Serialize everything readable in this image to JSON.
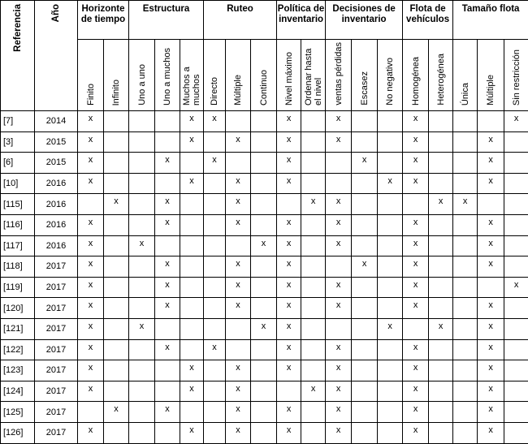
{
  "header": {
    "referencia": "Referencia",
    "year": "Año",
    "groups": [
      {
        "label": "Horizonte de tiempo",
        "columns": [
          "Finito",
          "Infinito"
        ]
      },
      {
        "label": "Estructura",
        "columns": [
          "Uno a uno",
          "Uno a muchos",
          "Muchos a muchos"
        ]
      },
      {
        "label": "Ruteo",
        "columns": [
          "Directo",
          "Múltiple",
          "Continuo"
        ]
      },
      {
        "label": "Política de inventario",
        "columns": [
          "Nivel máximo",
          "Ordenar hasta el nivel"
        ]
      },
      {
        "label": "Decisiones de inventario",
        "columns": [
          "ventas pérdidas",
          "Escasez",
          "No negativo"
        ]
      },
      {
        "label": "Flota de vehículos",
        "columns": [
          "Homogénea",
          "Heterogénea"
        ]
      },
      {
        "label": "Tamaño flota",
        "columns": [
          "Única",
          "Múltiple",
          "Sin restricción"
        ]
      }
    ]
  },
  "rows": [
    {
      "ref": "[7]",
      "year": "2014",
      "cells": [
        "x",
        null,
        null,
        null,
        "x",
        "x",
        null,
        null,
        "x",
        null,
        "x",
        null,
        null,
        "x",
        null,
        null,
        null,
        "x"
      ]
    },
    {
      "ref": "[3]",
      "year": "2015",
      "cells": [
        "x",
        null,
        null,
        null,
        "x",
        null,
        "x",
        null,
        "x",
        null,
        "x",
        null,
        null,
        "x",
        null,
        null,
        "x",
        null
      ]
    },
    {
      "ref": "[6]",
      "year": "2015",
      "cells": [
        "x",
        null,
        null,
        "x",
        null,
        "x",
        null,
        null,
        "x",
        null,
        null,
        "x",
        null,
        "x",
        null,
        null,
        "x",
        null
      ]
    },
    {
      "ref": "[10]",
      "year": "2016",
      "cells": [
        "x",
        null,
        null,
        null,
        "x",
        null,
        "x",
        null,
        "x",
        null,
        null,
        null,
        "x",
        "x",
        null,
        null,
        "x",
        null
      ]
    },
    {
      "ref": "[115]",
      "year": "2016",
      "cells": [
        null,
        "x",
        null,
        "x",
        null,
        null,
        "x",
        null,
        null,
        "x",
        "x",
        null,
        null,
        null,
        "x",
        "x",
        null,
        null
      ]
    },
    {
      "ref": "[116]",
      "year": "2016",
      "cells": [
        "x",
        null,
        null,
        "x",
        null,
        null,
        "x",
        null,
        "x",
        null,
        "x",
        null,
        null,
        "x",
        null,
        null,
        "x",
        null
      ]
    },
    {
      "ref": "[117]",
      "year": "2016",
      "cells": [
        "x",
        null,
        "x",
        null,
        null,
        null,
        null,
        "x",
        "x",
        null,
        "x",
        null,
        null,
        "x",
        null,
        null,
        "x",
        null
      ]
    },
    {
      "ref": "[118]",
      "year": "2017",
      "cells": [
        "x",
        null,
        null,
        "x",
        null,
        null,
        "x",
        null,
        "x",
        null,
        null,
        "x",
        null,
        "x",
        null,
        null,
        "x",
        null
      ]
    },
    {
      "ref": "[119]",
      "year": "2017",
      "cells": [
        "x",
        null,
        null,
        "x",
        null,
        null,
        "x",
        null,
        "x",
        null,
        "x",
        null,
        null,
        "x",
        null,
        null,
        null,
        "x"
      ]
    },
    {
      "ref": "[120]",
      "year": "2017",
      "cells": [
        "x",
        null,
        null,
        "x",
        null,
        null,
        "x",
        null,
        "x",
        null,
        "x",
        null,
        null,
        "x",
        null,
        null,
        "x",
        null
      ]
    },
    {
      "ref": "[121]",
      "year": "2017",
      "cells": [
        "x",
        null,
        "x",
        null,
        null,
        null,
        null,
        "x",
        "x",
        null,
        null,
        null,
        "x",
        null,
        "x",
        null,
        "x",
        null
      ]
    },
    {
      "ref": "[122]",
      "year": "2017",
      "cells": [
        "x",
        null,
        null,
        "x",
        null,
        "x",
        null,
        null,
        "x",
        null,
        "x",
        null,
        null,
        "x",
        null,
        null,
        "x",
        null
      ]
    },
    {
      "ref": "[123]",
      "year": "2017",
      "cells": [
        "x",
        null,
        null,
        null,
        "x",
        null,
        "x",
        null,
        "x",
        null,
        "x",
        null,
        null,
        "x",
        null,
        null,
        "x",
        null
      ]
    },
    {
      "ref": "[124]",
      "year": "2017",
      "cells": [
        "x",
        null,
        null,
        null,
        "x",
        null,
        "x",
        null,
        null,
        "x",
        "x",
        null,
        null,
        "x",
        null,
        null,
        "x",
        null
      ]
    },
    {
      "ref": "[125]",
      "year": "2017",
      "cells": [
        null,
        "x",
        null,
        "x",
        null,
        null,
        "x",
        null,
        "x",
        null,
        "x",
        null,
        null,
        "x",
        null,
        null,
        "x",
        null
      ]
    },
    {
      "ref": "[126]",
      "year": "2017",
      "cells": [
        "x",
        null,
        null,
        null,
        "x",
        null,
        "x",
        null,
        "x",
        null,
        "x",
        null,
        null,
        "x",
        null,
        null,
        "x",
        null
      ]
    }
  ]
}
